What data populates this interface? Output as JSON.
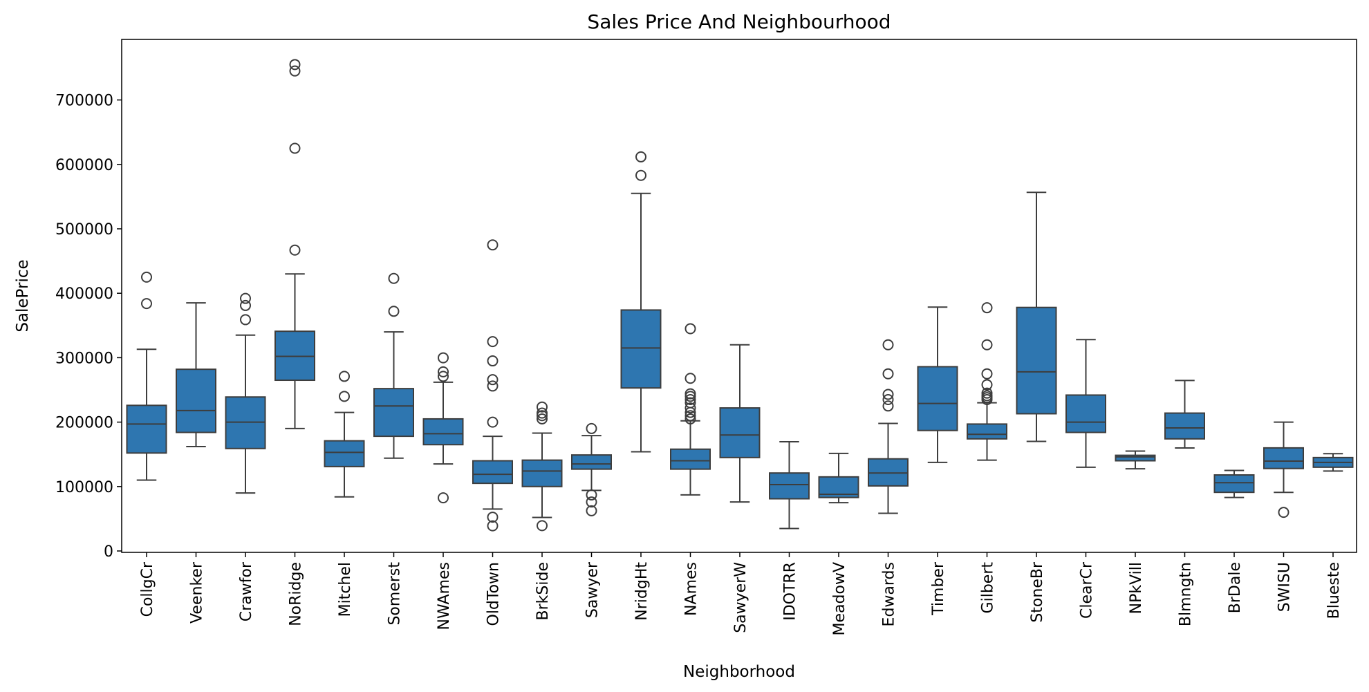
{
  "chart_data": {
    "type": "box",
    "title": "Sales Price And Neighbourhood",
    "xlabel": "Neighborhood",
    "ylabel": "SalePrice",
    "ylim": [
      0,
      790000
    ],
    "yticks": [
      0,
      100000,
      200000,
      300000,
      400000,
      500000,
      600000,
      700000
    ],
    "grid": false,
    "box_color": "#2e76b0",
    "line_color": "#3d3d3d",
    "categories": [
      "CollgCr",
      "Veenker",
      "Crawfor",
      "NoRidge",
      "Mitchel",
      "Somerst",
      "NWAmes",
      "OldTown",
      "BrkSide",
      "Sawyer",
      "NridgHt",
      "NAmes",
      "SawyerW",
      "IDOTRR",
      "MeadowV",
      "Edwards",
      "Timber",
      "Gilbert",
      "StoneBr",
      "ClearCr",
      "NPkVill",
      "Blmngtn",
      "BrDale",
      "SWISU",
      "Blueste"
    ],
    "boxes": [
      {
        "whisker_low": 110000,
        "q1": 152000,
        "median": 197000,
        "q3": 226000,
        "whisker_high": 313000,
        "outliers": [
          384000,
          425000
        ]
      },
      {
        "whisker_low": 162000,
        "q1": 184000,
        "median": 218000,
        "q3": 282000,
        "whisker_high": 385000,
        "outliers": []
      },
      {
        "whisker_low": 90000,
        "q1": 159000,
        "median": 200000,
        "q3": 239000,
        "whisker_high": 335000,
        "outliers": [
          359000,
          381000,
          392000
        ]
      },
      {
        "whisker_low": 190000,
        "q1": 265000,
        "median": 302000,
        "q3": 341000,
        "whisker_high": 430000,
        "outliers": [
          467000,
          625000,
          745000,
          755000
        ]
      },
      {
        "whisker_low": 84000,
        "q1": 131000,
        "median": 153000,
        "q3": 171000,
        "whisker_high": 215000,
        "outliers": [
          240000,
          271000
        ]
      },
      {
        "whisker_low": 144000,
        "q1": 178000,
        "median": 225000,
        "q3": 252000,
        "whisker_high": 340000,
        "outliers": [
          372000,
          423000
        ]
      },
      {
        "whisker_low": 135000,
        "q1": 165000,
        "median": 182000,
        "q3": 205000,
        "whisker_high": 262000,
        "outliers": [
          82500,
          271000,
          278000,
          299800
        ]
      },
      {
        "whisker_low": 65000,
        "q1": 105000,
        "median": 119000,
        "q3": 140000,
        "whisker_high": 178000,
        "outliers": [
          39000,
          52500,
          200000,
          256000,
          265900,
          295000,
          325000,
          475000
        ]
      },
      {
        "whisker_low": 52000,
        "q1": 100000,
        "median": 124000,
        "q3": 141000,
        "whisker_high": 183000,
        "outliers": [
          39300,
          205000,
          210000,
          214000,
          223500
        ]
      },
      {
        "whisker_low": 94000,
        "q1": 127000,
        "median": 135000,
        "q3": 149000,
        "whisker_high": 179000,
        "outliers": [
          62383,
          76000,
          87000,
          190000
        ]
      },
      {
        "whisker_low": 154000,
        "q1": 253000,
        "median": 315000,
        "q3": 374000,
        "whisker_high": 555000,
        "outliers": [
          582933,
          611657
        ]
      },
      {
        "whisker_low": 87000,
        "q1": 127000,
        "median": 140000,
        "q3": 158000,
        "whisker_high": 202000,
        "outliers": [
          205000,
          210000,
          215000,
          222000,
          230000,
          235000,
          240000,
          244000,
          268000,
          345000
        ]
      },
      {
        "whisker_low": 76000,
        "q1": 145000,
        "median": 180000,
        "q3": 222000,
        "whisker_high": 320000,
        "outliers": []
      },
      {
        "whisker_low": 34900,
        "q1": 81000,
        "median": 103000,
        "q3": 121000,
        "whisker_high": 169500,
        "outliers": []
      },
      {
        "whisker_low": 75000,
        "q1": 83000,
        "median": 88000,
        "q3": 115000,
        "whisker_high": 151400,
        "outliers": []
      },
      {
        "whisker_low": 58500,
        "q1": 101000,
        "median": 121000,
        "q3": 143000,
        "whisker_high": 198000,
        "outliers": [
          225000,
          235000,
          243000,
          275000,
          320000
        ]
      },
      {
        "whisker_low": 137500,
        "q1": 187000,
        "median": 229000,
        "q3": 286000,
        "whisker_high": 378500,
        "outliers": []
      },
      {
        "whisker_low": 141000,
        "q1": 174000,
        "median": 181000,
        "q3": 197000,
        "whisker_high": 230000,
        "outliers": [
          235000,
          238000,
          241000,
          245000,
          258000,
          275000,
          320000,
          377500
        ]
      },
      {
        "whisker_low": 170000,
        "q1": 213000,
        "median": 278000,
        "q3": 378000,
        "whisker_high": 556581,
        "outliers": []
      },
      {
        "whisker_low": 130000,
        "q1": 184000,
        "median": 200000,
        "q3": 242000,
        "whisker_high": 328000,
        "outliers": []
      },
      {
        "whisker_low": 127500,
        "q1": 140000,
        "median": 146000,
        "q3": 148500,
        "whisker_high": 155000,
        "outliers": []
      },
      {
        "whisker_low": 159895,
        "q1": 174000,
        "median": 191000,
        "q3": 214000,
        "whisker_high": 264561,
        "outliers": []
      },
      {
        "whisker_low": 83000,
        "q1": 91000,
        "median": 106000,
        "q3": 118000,
        "whisker_high": 125000,
        "outliers": []
      },
      {
        "whisker_low": 91000,
        "q1": 128000,
        "median": 139500,
        "q3": 160000,
        "whisker_high": 200000,
        "outliers": [
          60000
        ]
      },
      {
        "whisker_low": 124000,
        "q1": 130000,
        "median": 137500,
        "q3": 145000,
        "whisker_high": 151000,
        "outliers": []
      }
    ]
  }
}
